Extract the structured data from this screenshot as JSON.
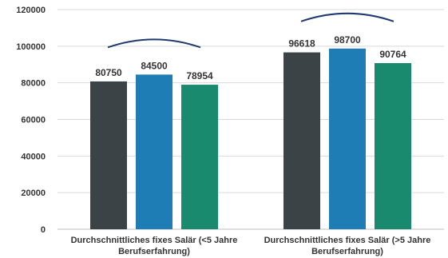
{
  "chart_data": {
    "type": "bar",
    "title": "",
    "xlabel": "",
    "ylabel": "",
    "ylim": [
      0,
      120000
    ],
    "yticks": [
      0,
      20000,
      40000,
      60000,
      80000,
      100000,
      120000
    ],
    "grid": true,
    "legend": "none",
    "categories": [
      [
        "Durchschnittliches fixes Salär (<5 Jahre",
        "Berufserfahrung)"
      ],
      [
        "Durchschnittliches fixes Salär (>5 Jahre",
        "Berufserfahrung)"
      ]
    ],
    "series": [
      {
        "color": "#3b4347",
        "values": [
          80750,
          96618
        ]
      },
      {
        "color": "#1f7db5",
        "values": [
          84500,
          98700
        ]
      },
      {
        "color": "#1a8a6e",
        "values": [
          78954,
          90764
        ]
      }
    ],
    "annotations": "curved arc above each group of bars",
    "colors": {
      "grid": "#d9d9d9",
      "axis": "#bfbfbf",
      "text": "#333333",
      "arc": "#1f3a6e"
    }
  }
}
